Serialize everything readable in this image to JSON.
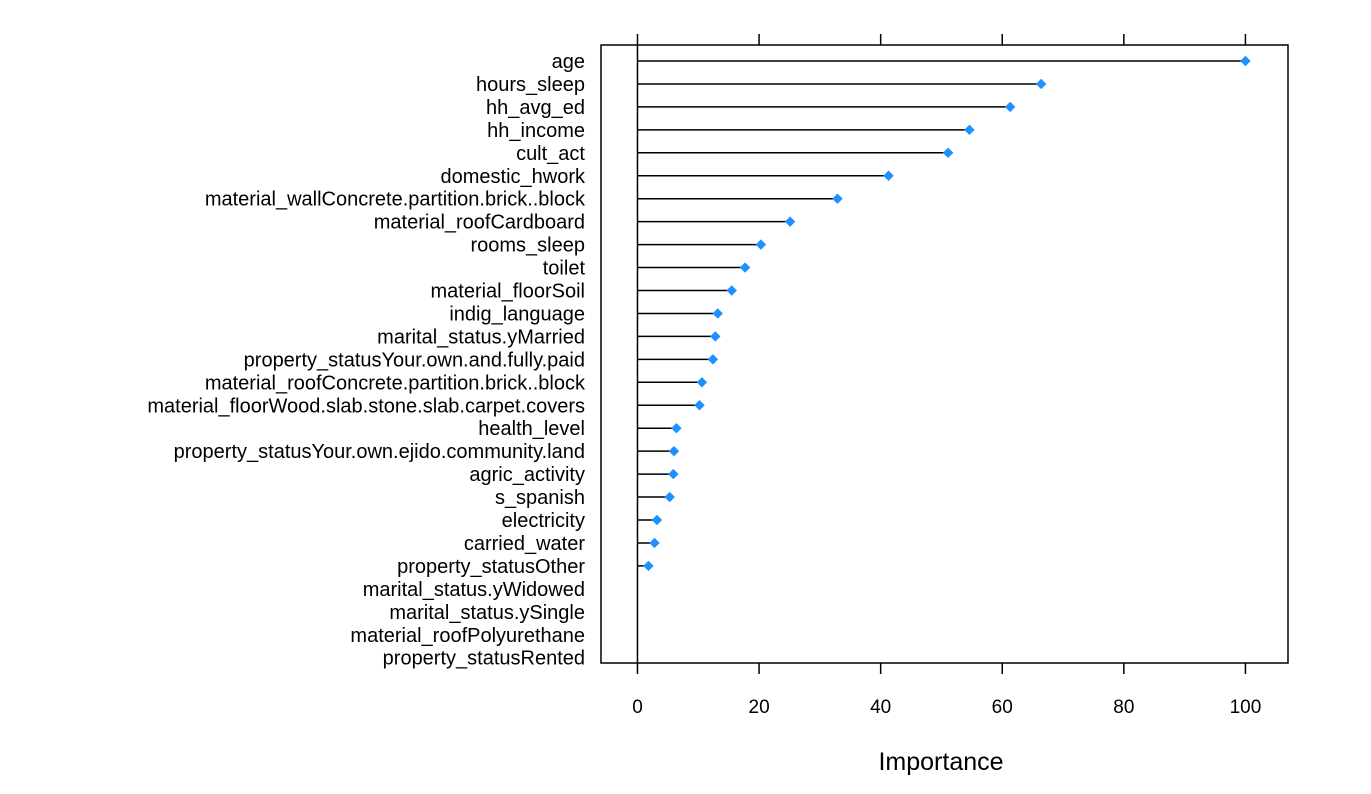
{
  "chart_data": {
    "type": "dotplot",
    "title": "",
    "xlabel": "Importance",
    "ylabel": "",
    "xlim": [
      -6,
      107
    ],
    "x_ticks": [
      0,
      20,
      40,
      60,
      80,
      100
    ],
    "x_tick_labels": [
      "0",
      "20",
      "40",
      "60",
      "80",
      "100"
    ],
    "reference_line_x": 0,
    "grid": false,
    "legend": "none",
    "marker": "diamond",
    "colors": {
      "point": "#1e90ff",
      "stem": "#000000",
      "axis": "#000000",
      "text": "#000000"
    },
    "categories": [
      "age",
      "hours_sleep",
      "hh_avg_ed",
      "hh_income",
      "cult_act",
      "domestic_hwork",
      "material_wallConcrete.partition.brick..block",
      "material_roofCardboard",
      "rooms_sleep",
      "toilet",
      "material_floorSoil",
      "indig_language",
      "marital_status.yMarried",
      "property_statusYour.own.and.fully.paid",
      "material_roofConcrete.partition.brick..block",
      "material_floorWood.slab.stone.slab.carpet.covers",
      "health_level",
      "property_statusYour.own.ejido.community.land",
      "agric_activity",
      "s_spanish",
      "electricity",
      "carried_water",
      "property_statusOther",
      "marital_status.yWidowed",
      "marital_status.ySingle",
      "material_roofPolyurethane",
      "property_statusRented"
    ],
    "values": [
      100,
      66.4,
      61.3,
      54.6,
      51.1,
      41.3,
      32.9,
      25.1,
      20.3,
      17.7,
      15.5,
      13.2,
      12.8,
      12.4,
      10.6,
      10.2,
      6.4,
      6.0,
      5.9,
      5.3,
      3.2,
      2.8,
      1.8,
      0,
      0,
      0,
      0
    ]
  }
}
